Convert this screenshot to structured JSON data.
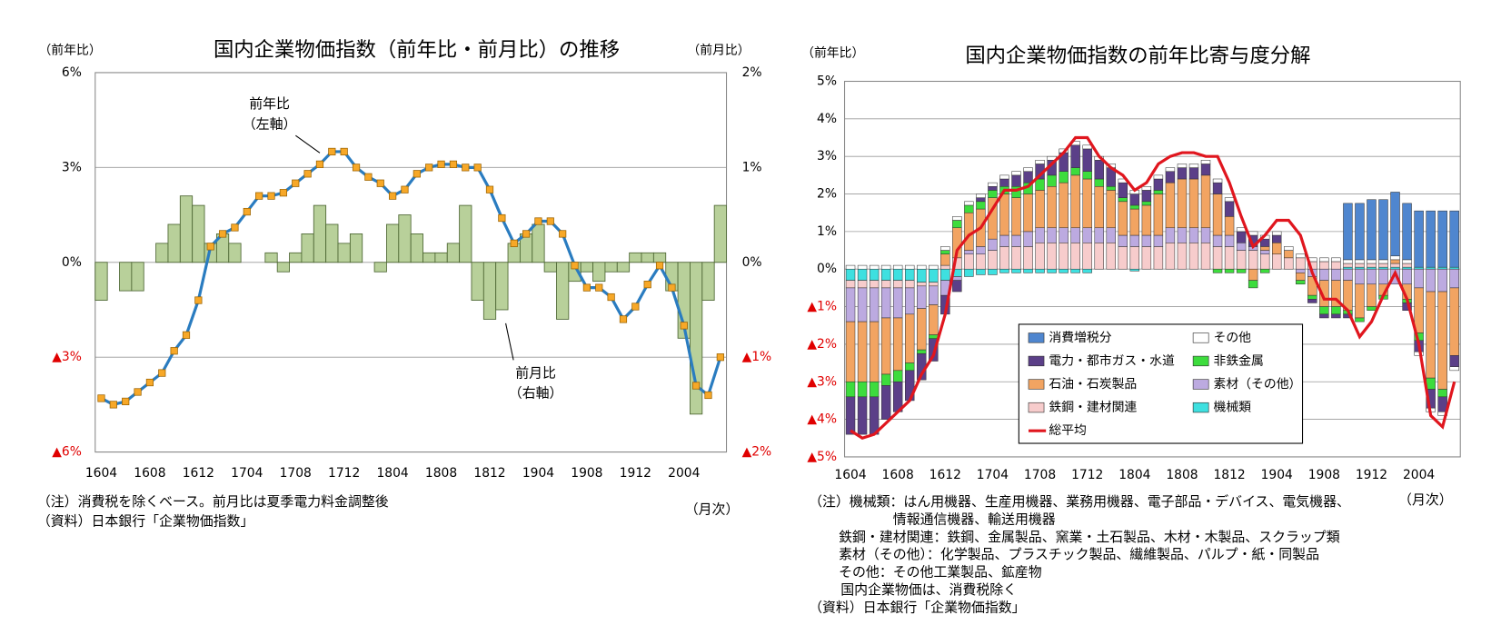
{
  "chart_data": [
    {
      "type": "combo",
      "title": "国内企業物価指数（前年比・前月比）の推移",
      "y_label": "（前年比）",
      "y2_label": "（前月比）",
      "x_unit": "（月次）",
      "categories": [
        "1604",
        null,
        null,
        null,
        "1608",
        null,
        null,
        null,
        "1612",
        null,
        null,
        null,
        "1704",
        null,
        null,
        null,
        "1708",
        null,
        null,
        null,
        "1712",
        null,
        null,
        null,
        "1804",
        null,
        null,
        null,
        "1808",
        null,
        null,
        null,
        "1812",
        null,
        null,
        null,
        "1904",
        null,
        null,
        null,
        "1908",
        null,
        null,
        null,
        "1912",
        null,
        null,
        null,
        "2004",
        null,
        null,
        null
      ],
      "series": [
        {
          "name": "前月比",
          "type": "bar",
          "axis": "y2",
          "color": "#b8d09a",
          "values": [
            -0.4,
            0,
            -0.3,
            -0.3,
            0,
            0.2,
            0.4,
            0.7,
            0.6,
            0.2,
            0.3,
            0.2,
            0,
            0,
            0.1,
            -0.1,
            0.1,
            0.3,
            0.6,
            0.4,
            0.2,
            0.3,
            0,
            -0.1,
            0.4,
            0.5,
            0.3,
            0.1,
            0.1,
            0.2,
            0.6,
            -0.4,
            -0.6,
            -0.5,
            0.2,
            0.3,
            0.4,
            -0.1,
            -0.6,
            -0.2,
            -0.1,
            -0.2,
            -0.1,
            -0.1,
            0.1,
            0.1,
            0.1,
            -0.3,
            -0.8,
            -1.6,
            -0.4,
            0.6
          ]
        },
        {
          "name": "前年比",
          "type": "line",
          "color": "#2a7cc0",
          "marker_color": "#f7a828",
          "values": [
            -4.3,
            -4.5,
            -4.4,
            -4.1,
            -3.8,
            -3.5,
            -2.8,
            -2.3,
            -1.2,
            0.5,
            0.9,
            1.1,
            1.6,
            2.1,
            2.1,
            2.2,
            2.5,
            2.8,
            3.1,
            3.5,
            3.5,
            3.0,
            2.7,
            2.5,
            2.1,
            2.3,
            2.8,
            3.0,
            3.1,
            3.1,
            3.0,
            3.0,
            2.3,
            1.4,
            0.6,
            0.9,
            1.3,
            1.3,
            0.9,
            -0.1,
            -0.8,
            -0.8,
            -1.1,
            -1.8,
            -1.4,
            -0.7,
            -0.1,
            -0.8,
            -2.0,
            -3.9,
            -4.2,
            -3.0
          ]
        }
      ],
      "annotations": [
        "（左軸）",
        "（右軸）"
      ],
      "ylim": [
        -6,
        6
      ],
      "yticks": [
        {
          "value": -6,
          "label": "▲6%"
        },
        {
          "value": -3,
          "label": "▲3%"
        },
        {
          "value": 0,
          "label": "0%"
        },
        {
          "value": 3,
          "label": "3%"
        },
        {
          "value": 6,
          "label": "6%"
        }
      ],
      "y2lim": [
        -2,
        2
      ],
      "y2ticks": [
        {
          "value": -2,
          "label": "▲2%"
        },
        {
          "value": -1,
          "label": "▲1%"
        },
        {
          "value": 0,
          "label": "0%"
        },
        {
          "value": 1,
          "label": "1%"
        },
        {
          "value": 2,
          "label": "2%"
        }
      ],
      "grid": true,
      "notes": [
        "（注）消費税を除くベース。前月比は夏季電力料金調整後",
        "（資料）日本銀行「企業物価指数」"
      ]
    },
    {
      "type": "stacked_bar",
      "title": "国内企業物価指数の前年比寄与度分解",
      "y_label": "（前年比）",
      "x_unit": "（月次）",
      "categories": [
        "1604",
        null,
        null,
        null,
        "1608",
        null,
        null,
        null,
        "1612",
        null,
        null,
        null,
        "1704",
        null,
        null,
        null,
        "1708",
        null,
        null,
        null,
        "1712",
        null,
        null,
        null,
        "1804",
        null,
        null,
        null,
        "1808",
        null,
        null,
        null,
        "1812",
        null,
        null,
        null,
        "1904",
        null,
        null,
        null,
        "1908",
        null,
        null,
        null,
        "1912",
        null,
        null,
        null,
        "2004",
        null,
        null,
        null
      ],
      "series": [
        {
          "name": "消費増税分",
          "color": "#4f86cf",
          "values": [
            0,
            0,
            0,
            0,
            0,
            0,
            0,
            0,
            0,
            0,
            0,
            0,
            0,
            0,
            0,
            0,
            0,
            0,
            0,
            0,
            0,
            0,
            0,
            0,
            0,
            0,
            0,
            0,
            0,
            0,
            0,
            0,
            0,
            0,
            0,
            0,
            0,
            0,
            0,
            0,
            0,
            0,
            1.5,
            1.5,
            1.6,
            1.6,
            1.7,
            1.5,
            1.5,
            1.5,
            1.5,
            1.5
          ]
        },
        {
          "name": "その他",
          "color": "#ffffff",
          "values": [
            0.1,
            0.1,
            0.1,
            0.1,
            0.1,
            0.1,
            0.1,
            0.1,
            0.1,
            0.1,
            0.1,
            0.1,
            0.1,
            0.1,
            0.1,
            0.1,
            0.1,
            0.1,
            0.1,
            0.1,
            0.1,
            0.1,
            0.1,
            0.1,
            0.1,
            0.1,
            0.1,
            0.1,
            0.1,
            0.1,
            0.1,
            0.1,
            0.1,
            0.1,
            0.1,
            0.1,
            0.1,
            0.1,
            0.1,
            0.1,
            0.1,
            0.1,
            0.1,
            0.1,
            0.1,
            0.1,
            0.1,
            0.1,
            -0.1,
            -0.1,
            -0.1,
            -0.1
          ]
        },
        {
          "name": "電力・都市ガス・水道",
          "color": "#5b3f88",
          "values": [
            -1.0,
            -1.0,
            -1.0,
            -0.9,
            -0.8,
            -0.8,
            -0.7,
            -0.6,
            -0.5,
            -0.3,
            0,
            0.1,
            0.1,
            0.2,
            0.3,
            0.3,
            0.4,
            0.4,
            0.5,
            0.6,
            0.6,
            0.5,
            0.5,
            0.4,
            0.3,
            0.3,
            0.3,
            0.3,
            0.3,
            0.3,
            0.3,
            0.3,
            0.4,
            0.3,
            0.3,
            0.2,
            0.2,
            0,
            0,
            -0.1,
            -0.1,
            -0.1,
            -0.1,
            0,
            0,
            0,
            0,
            -0.2,
            -0.3,
            -0.5,
            -0.4,
            -0.3
          ]
        },
        {
          "name": "非鉄金属",
          "color": "#3ddc3d",
          "values": [
            -0.4,
            -0.4,
            -0.4,
            -0.3,
            -0.3,
            -0.2,
            -0.1,
            -0.1,
            0.1,
            0.2,
            0.2,
            0.2,
            0.2,
            0.2,
            0.3,
            0.3,
            0.3,
            0.3,
            0.3,
            0.2,
            0.2,
            0.2,
            0.1,
            0.1,
            0.1,
            0.1,
            0.1,
            0,
            0,
            0,
            0,
            -0.1,
            -0.1,
            -0.1,
            -0.2,
            -0.1,
            0,
            0,
            -0.1,
            -0.1,
            -0.2,
            -0.2,
            -0.1,
            -0.1,
            -0.1,
            -0.1,
            0,
            -0.1,
            -0.2,
            -0.3,
            -0.2,
            0
          ]
        },
        {
          "name": "石油・石炭製品",
          "color": "#f2a462",
          "values": [
            -1.6,
            -1.6,
            -1.6,
            -1.5,
            -1.4,
            -1.3,
            -1.1,
            -0.8,
            0.3,
            0.8,
            1.0,
            1.0,
            1.1,
            1.1,
            1.0,
            1.0,
            1.0,
            1.1,
            1.2,
            1.4,
            1.3,
            1.1,
            1.0,
            0.9,
            0.7,
            0.8,
            1.1,
            1.2,
            1.3,
            1.3,
            1.4,
            1.1,
            0.5,
            0,
            -0.3,
            0.1,
            0.3,
            0.2,
            -0.2,
            -0.5,
            -0.7,
            -0.7,
            -0.8,
            -0.9,
            -0.6,
            -0.3,
            0.1,
            -0.4,
            -1.2,
            -2.3,
            -2.6,
            -1.8
          ]
        },
        {
          "name": "素材（その他）",
          "color": "#bcaae0",
          "values": [
            -0.9,
            -0.9,
            -0.9,
            -0.8,
            -0.8,
            -0.7,
            -0.6,
            -0.5,
            -0.4,
            -0.1,
            0.1,
            0.2,
            0.3,
            0.3,
            0.3,
            0.4,
            0.4,
            0.4,
            0.4,
            0.4,
            0.4,
            0.4,
            0.4,
            0.3,
            0.3,
            0.3,
            0.3,
            0.4,
            0.4,
            0.4,
            0.4,
            0.3,
            0.3,
            0.2,
            0.1,
            0.1,
            0,
            0,
            -0.1,
            -0.2,
            -0.3,
            -0.3,
            -0.3,
            -0.4,
            -0.4,
            -0.4,
            -0.4,
            -0.4,
            -0.5,
            -0.6,
            -0.6,
            -0.5
          ]
        },
        {
          "name": "鉄鋼・建材関連",
          "color": "#f7cccc",
          "values": [
            -0.2,
            -0.2,
            -0.2,
            -0.2,
            -0.2,
            -0.2,
            -0.1,
            -0.1,
            0.1,
            0.3,
            0.4,
            0.4,
            0.5,
            0.6,
            0.6,
            0.6,
            0.7,
            0.7,
            0.7,
            0.7,
            0.7,
            0.7,
            0.7,
            0.6,
            0.6,
            0.6,
            0.6,
            0.7,
            0.7,
            0.7,
            0.7,
            0.6,
            0.6,
            0.5,
            0.5,
            0.4,
            0.4,
            0.3,
            0.3,
            0.2,
            0.2,
            0.2,
            0.1,
            0.1,
            0.1,
            0.1,
            0.1,
            0.1,
            0,
            0,
            0,
            0
          ]
        },
        {
          "name": "機械類",
          "color": "#3ee0e0",
          "values": [
            -0.3,
            -0.3,
            -0.3,
            -0.3,
            -0.3,
            -0.3,
            -0.35,
            -0.35,
            -0.3,
            -0.2,
            -0.2,
            -0.15,
            -0.15,
            -0.1,
            -0.1,
            -0.1,
            -0.1,
            -0.1,
            -0.1,
            -0.1,
            -0.1,
            0,
            0,
            0,
            -0.05,
            0,
            0,
            0,
            0,
            0,
            0,
            0,
            0,
            0,
            0,
            0,
            0,
            0,
            0,
            0,
            0,
            0,
            0.05,
            0.05,
            0.05,
            0.05,
            0.05,
            0.05,
            0.05,
            0.05,
            0.05,
            0.05
          ]
        }
      ],
      "line": {
        "name": "総平均",
        "color": "#e0161e",
        "values": [
          -4.3,
          -4.5,
          -4.4,
          -4.1,
          -3.8,
          -3.5,
          -2.8,
          -2.3,
          -1.2,
          0.5,
          0.9,
          1.1,
          1.6,
          2.1,
          2.1,
          2.2,
          2.5,
          2.8,
          3.1,
          3.5,
          3.5,
          3.0,
          2.7,
          2.5,
          2.1,
          2.3,
          2.8,
          3.0,
          3.1,
          3.1,
          3.0,
          3.0,
          2.3,
          1.4,
          0.6,
          0.9,
          1.3,
          1.3,
          0.9,
          -0.1,
          -0.8,
          -0.8,
          -1.1,
          -1.8,
          -1.4,
          -0.7,
          -0.1,
          -0.8,
          -2.0,
          -3.9,
          -4.2,
          -3.0
        ]
      },
      "ylim": [
        -5,
        5
      ],
      "yticks": [
        {
          "value": -5,
          "label": "▲5%"
        },
        {
          "value": -4,
          "label": "▲4%"
        },
        {
          "value": -3,
          "label": "▲3%"
        },
        {
          "value": -2,
          "label": "▲2%"
        },
        {
          "value": -1,
          "label": "▲1%"
        },
        {
          "value": 0,
          "label": "0%"
        },
        {
          "value": 1,
          "label": "1%"
        },
        {
          "value": 2,
          "label": "2%"
        },
        {
          "value": 3,
          "label": "3%"
        },
        {
          "value": 4,
          "label": "4%"
        },
        {
          "value": 5,
          "label": "5%"
        }
      ],
      "grid": true,
      "legend": "lower center",
      "notes": [
        "（注）機械類：はん用機器、生産用機器、業務用機器、電子部品・デバイス、電気機器、",
        "情報通信機器、輸送用機器",
        "鉄鋼・建材関連：鉄鋼、金属製品、窯業・土石製品、木材・木製品、スクラップ類",
        "素材（その他）：化学製品、プラスチック製品、繊維製品、パルプ・紙・同製品",
        "その他：その他工業製品、鉱産物",
        "国内企業物価は、消費税除く",
        "（資料）日本銀行「企業物価指数」"
      ]
    }
  ]
}
